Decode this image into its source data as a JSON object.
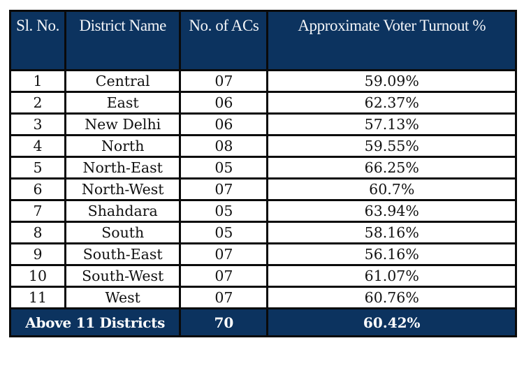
{
  "table": {
    "headers": {
      "sl_no": "Sl. No.",
      "district_name": "District Name",
      "no_of_acs": "No. of ACs",
      "turnout": "Approximate Voter Turnout %"
    },
    "rows": [
      {
        "sl": "1",
        "district": "Central",
        "acs": "07",
        "turnout": "59.09%"
      },
      {
        "sl": "2",
        "district": "East",
        "acs": "06",
        "turnout": "62.37%"
      },
      {
        "sl": "3",
        "district": "New Delhi",
        "acs": "06",
        "turnout": "57.13%"
      },
      {
        "sl": "4",
        "district": "North",
        "acs": "08",
        "turnout": "59.55%"
      },
      {
        "sl": "5",
        "district": "North-East",
        "acs": "05",
        "turnout": "66.25%"
      },
      {
        "sl": "6",
        "district": "North-West",
        "acs": "07",
        "turnout": "60.7%"
      },
      {
        "sl": "7",
        "district": "Shahdara",
        "acs": "05",
        "turnout": "63.94%"
      },
      {
        "sl": "8",
        "district": "South",
        "acs": "05",
        "turnout": "58.16%"
      },
      {
        "sl": "9",
        "district": "South-East",
        "acs": "07",
        "turnout": "56.16%"
      },
      {
        "sl": "10",
        "district": "South-West",
        "acs": "07",
        "turnout": "61.07%"
      },
      {
        "sl": "11",
        "district": "West",
        "acs": "07",
        "turnout": "60.76%"
      }
    ],
    "total": {
      "label": "Above 11 Districts",
      "acs": "70",
      "turnout": "60.42%"
    }
  },
  "colors": {
    "header_bg": "#0c335f",
    "header_text": "#f3f5f8",
    "border": "#0a0a0a"
  }
}
